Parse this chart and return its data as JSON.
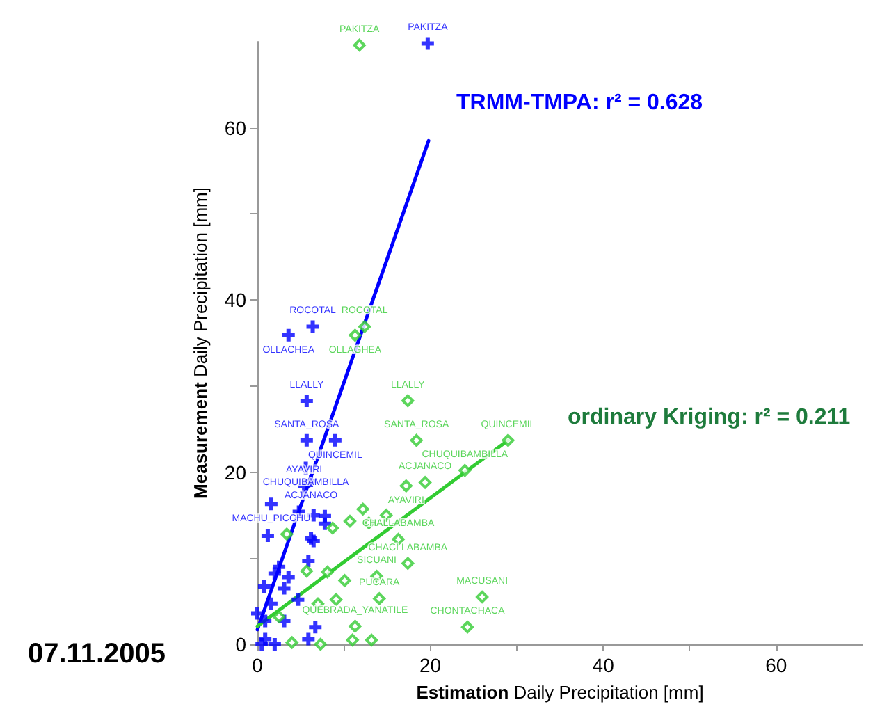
{
  "chart_data": {
    "type": "scatter",
    "xlabel": "Estimation Daily Precipitation [mm]",
    "ylabel": "Measurement Daily Precipitation [mm]",
    "xlim": [
      0,
      70
    ],
    "ylim": [
      0,
      70
    ],
    "xticks": [
      0,
      {
        "value": 10,
        "label": null
      },
      20,
      {
        "value": 30,
        "label": null
      },
      40,
      {
        "value": 50,
        "label": null
      },
      60
    ],
    "yticks": [
      0,
      {
        "value": 10,
        "label": null
      },
      20,
      {
        "value": 30,
        "label": null
      },
      40,
      {
        "value": 50,
        "label": null
      },
      60
    ],
    "grid": false,
    "annotations": [
      "TRMM-TMPA: r² = 0.628",
      "ordinary Kriging: r² = 0.211",
      "07.11.2005"
    ],
    "series": [
      {
        "color": "#0000ff",
        "marker": "cross",
        "x": [
          19.7,
          6.4,
          3.6,
          5.7,
          5.7,
          9.0,
          5.6,
          6.2,
          5.4,
          1.6,
          4.8,
          6.5,
          7.8,
          7.8,
          1.2,
          6.2,
          6.5,
          5.9,
          2.5,
          2.0,
          3.6,
          0.8,
          3.1,
          4.7,
          1.6,
          6.7,
          5.9,
          0.9,
          2.0,
          0.5,
          3.1,
          0.9,
          0
        ],
        "values": [
          69.8,
          36.9,
          35.9,
          28.3,
          23.7,
          23.7,
          20.5,
          19.0,
          18.4,
          16.3,
          15.4,
          15.0,
          14.9,
          14.0,
          12.6,
          12.3,
          12.0,
          9.7,
          9.0,
          8.2,
          7.8,
          6.7,
          6.5,
          5.2,
          4.7,
          2.0,
          0.6,
          0.6,
          0,
          0,
          2.7,
          2.7,
          3.6
        ],
        "value_labels": [
          "PAKITZA",
          "ROCOTAL",
          "OLLACHEA",
          "LLALLY",
          "SANTA_ROSA",
          "QUINCEMIL",
          "CHUQUIBAMBILLA",
          "ACJANACO",
          "AYAVIRI",
          "MACHU_PICCHU",
          null,
          null,
          null,
          null,
          null,
          null,
          null,
          null,
          null,
          null,
          null,
          null,
          null,
          null,
          null,
          null,
          null,
          null,
          null,
          null,
          null,
          null,
          null
        ]
      },
      {
        "color": "#33cc33",
        "marker": "diamond",
        "x": [
          11.8,
          12.4,
          11.3,
          17.4,
          18.4,
          29.0,
          24.0,
          19.4,
          17.2,
          12.2,
          12.9,
          14.9,
          10.7,
          8.7,
          16.3,
          17.4,
          13.8,
          14.1,
          26.0,
          24.3,
          11.3,
          11.0,
          13.2,
          3.4,
          5.7,
          8.1,
          10.1,
          9.1,
          7.0,
          7.3,
          4.0,
          2.5
        ],
        "values": [
          69.6,
          36.9,
          35.9,
          28.3,
          23.7,
          23.7,
          20.2,
          18.8,
          18.4,
          15.7,
          14.1,
          15.0,
          14.3,
          13.5,
          12.2,
          9.4,
          7.9,
          5.3,
          5.5,
          2.0,
          2.1,
          0.5,
          0.5,
          12.8,
          8.5,
          8.4,
          7.4,
          5.2,
          4.7,
          0,
          0.2,
          3.2
        ],
        "value_labels": [
          "PAKITZA",
          "ROCOTAL",
          "OLLAGHEA",
          "LLALLY",
          "SANTA_ROSA",
          "QUINCEMIL",
          "CHUQUIBAMBILLA",
          "ACJANACO",
          "AYAVIRI",
          null,
          null,
          null,
          null,
          null,
          "CHALLABAMBA",
          "CHACLLABAMBA",
          "SICUANI",
          "PUCARA",
          "MACUSANI",
          "CHONTACHACA",
          "QUEBRADA_YANATILE",
          null,
          null,
          null,
          null,
          null,
          null,
          null,
          null,
          null,
          null,
          null
        ]
      },
      {
        "type": "line",
        "color": "#0000ff",
        "marker": "none",
        "x": [
          0,
          19.8
        ],
        "values": [
          1.7,
          58.5
        ]
      },
      {
        "type": "line",
        "color": "#33cc33",
        "marker": "none",
        "x": [
          0,
          29.0
        ],
        "values": [
          2.1,
          23.7
        ]
      }
    ]
  }
}
